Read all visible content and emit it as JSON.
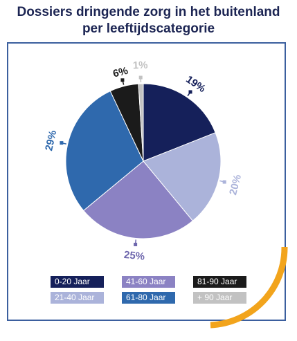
{
  "title_line1": "Dossiers dringende zorg in het buitenland",
  "title_line2": "per leeftijdscategorie",
  "chart_data": {
    "type": "pie",
    "title": "Dossiers dringende zorg in het buitenland per leeftijdscategorie",
    "slices": [
      {
        "name": "0-20 Jaar",
        "value": 19,
        "label": "19%",
        "color": "#15205a",
        "label_color": "#15205a"
      },
      {
        "name": "21-40 Jaar",
        "value": 20,
        "label": "20%",
        "color": "#abb3da",
        "label_color": "#abb3da"
      },
      {
        "name": "41-60 Jaar",
        "value": 25,
        "label": "25%",
        "color": "#8b82c3",
        "label_color": "#6e67ad"
      },
      {
        "name": "61-80 Jaar",
        "value": 29,
        "label": "29%",
        "color": "#2f69ad",
        "label_color": "#2f69ad"
      },
      {
        "name": "81-90 Jaar",
        "value": 6,
        "label": "6%",
        "color": "#1b1b1b",
        "label_color": "#1b1b1b"
      },
      {
        "name": "+ 90 Jaar",
        "value": 1,
        "label": "1%",
        "color": "#c2c2c2",
        "label_color": "#c2c2c2"
      }
    ],
    "legend_position": "bottom"
  },
  "legend": [
    {
      "label": "0-20 Jaar",
      "bg": "#15205a",
      "fg": "#ffffff"
    },
    {
      "label": "41-60 Jaar",
      "bg": "#8b82c3",
      "fg": "#ffffff"
    },
    {
      "label": "81-90 Jaar",
      "bg": "#1b1b1b",
      "fg": "#ffffff"
    },
    {
      "label": "21-40 Jaar",
      "bg": "#abb3da",
      "fg": "#ffffff"
    },
    {
      "label": "61-80 Jaar",
      "bg": "#2f69ad",
      "fg": "#ffffff"
    },
    {
      "label": "+ 90 Jaar",
      "bg": "#c2c2c2",
      "fg": "#ffffff"
    }
  ],
  "colors": {
    "title": "#1c2553",
    "frame": "#3b5f9e",
    "accent": "#f2a41c"
  }
}
